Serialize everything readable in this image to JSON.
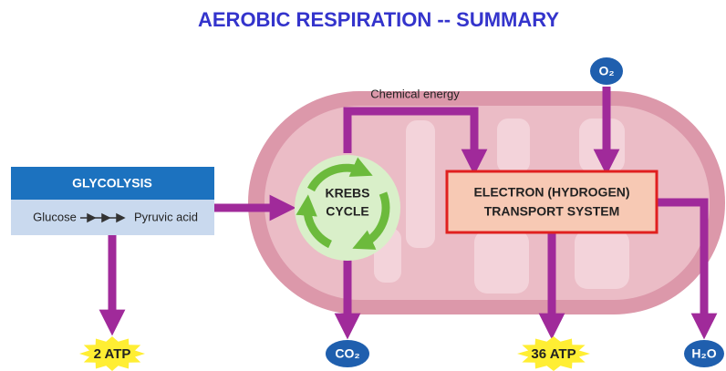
{
  "title": "AEROBIC RESPIRATION  --  SUMMARY",
  "glycolysis": {
    "label": "GLYCOLYSIS",
    "input": "Glucose",
    "output": "Pyruvic acid"
  },
  "krebs": {
    "lines": [
      "KREBS",
      "CYCLE"
    ]
  },
  "chemical_energy": "Chemical energy",
  "transport": {
    "lines": [
      "ELECTRON (HYDROGEN)",
      "TRANSPORT SYSTEM"
    ]
  },
  "oxygen": "O₂",
  "outputs": {
    "glycolysis_atp": "2 ATP",
    "co2": "CO₂",
    "ets_atp": "36 ATP",
    "water": "H₂O"
  }
}
